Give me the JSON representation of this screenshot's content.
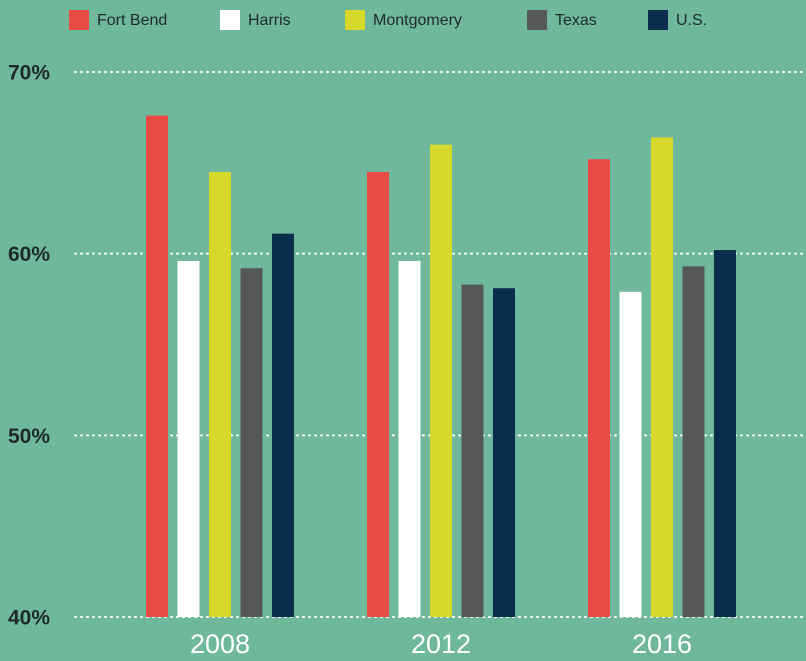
{
  "chart_data": {
    "type": "bar",
    "categories": [
      "2008",
      "2012",
      "2016"
    ],
    "series": [
      {
        "name": "Fort Bend",
        "color": "#e84c45",
        "values": [
          67.6,
          64.5,
          65.2
        ]
      },
      {
        "name": "Harris",
        "color": "#ffffff",
        "values": [
          59.6,
          59.6,
          57.9
        ]
      },
      {
        "name": "Montgomery",
        "color": "#d6d92a",
        "values": [
          64.5,
          66.0,
          66.4
        ]
      },
      {
        "name": "Texas",
        "color": "#555759",
        "values": [
          59.2,
          58.3,
          59.3
        ]
      },
      {
        "name": "U.S.",
        "color": "#0b2e4f",
        "values": [
          61.1,
          58.1,
          60.2
        ]
      }
    ],
    "ylim": [
      40,
      70
    ],
    "yticks": [
      {
        "value": 40,
        "label": "40%"
      },
      {
        "value": 50,
        "label": "50%"
      },
      {
        "value": 60,
        "label": "60%"
      },
      {
        "value": 70,
        "label": "70%"
      }
    ],
    "grid": true,
    "legend": "top"
  }
}
